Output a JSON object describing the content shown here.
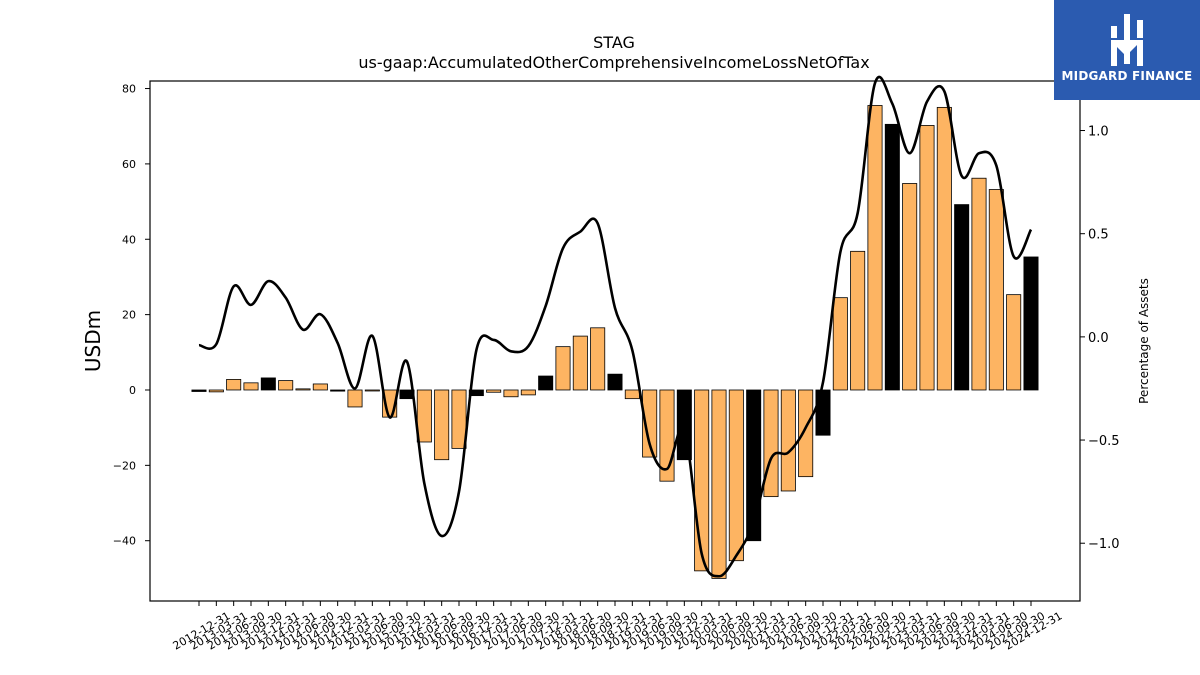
{
  "chart_data": {
    "type": "bar",
    "title": "STAG",
    "subtitle": "us-gaap:AccumulatedOtherComprehensiveIncomeLossNetOfTax",
    "ylabel": "USDm",
    "y2label": "Percentage of Assets",
    "ylim": [
      -56,
      82
    ],
    "y2lim": [
      -1.28,
      1.24
    ],
    "yticks": [
      -40,
      -20,
      0,
      20,
      40,
      60,
      80
    ],
    "y2ticks": [
      -1.0,
      -0.5,
      0.0,
      0.5,
      1.0
    ],
    "categories": [
      "2012-12-31",
      "2013-03-31",
      "2013-06-30",
      "2013-09-30",
      "2013-12-31",
      "2014-03-31",
      "2014-06-30",
      "2014-09-30",
      "2014-12-31",
      "2015-03-31",
      "2015-06-30",
      "2015-09-30",
      "2015-12-31",
      "2016-03-31",
      "2016-06-30",
      "2016-09-30",
      "2016-12-31",
      "2017-03-31",
      "2017-06-30",
      "2017-09-30",
      "2017-12-31",
      "2018-03-31",
      "2018-06-30",
      "2018-09-30",
      "2018-12-31",
      "2019-03-31",
      "2019-06-30",
      "2019-09-30",
      "2019-12-31",
      "2020-03-31",
      "2020-06-30",
      "2020-09-30",
      "2020-12-31",
      "2021-03-31",
      "2021-06-30",
      "2021-09-30",
      "2021-12-31",
      "2022-03-31",
      "2022-06-30",
      "2022-09-30",
      "2022-12-31",
      "2023-03-31",
      "2023-06-30",
      "2023-09-30",
      "2023-12-31",
      "2024-03-31",
      "2024-06-30",
      "2024-09-30",
      "2024-12-31"
    ],
    "series": [
      {
        "type": "bar",
        "axis": "left",
        "values": [
          -0.4,
          -0.5,
          2.8,
          1.9,
          3.2,
          2.5,
          0.3,
          1.6,
          -0.3,
          -4.5,
          -0.2,
          -7.2,
          -2.3,
          -13.8,
          -18.5,
          -15.5,
          -1.5,
          -0.6,
          -1.8,
          -1.3,
          3.7,
          11.5,
          14.3,
          16.5,
          4.2,
          -2.3,
          -17.8,
          -24.2,
          -18.5,
          -48.0,
          -50.0,
          -45.3,
          -40.0,
          -28.3,
          -26.8,
          -23.0,
          -12.0,
          24.5,
          36.8,
          75.5,
          70.5,
          54.8,
          70.2,
          75.0,
          49.2,
          56.2,
          53.2,
          25.3,
          35.3
        ]
      },
      {
        "type": "line",
        "axis": "right",
        "values": [
          -0.04,
          -0.035,
          0.245,
          0.155,
          0.27,
          0.19,
          0.035,
          0.11,
          -0.03,
          -0.25,
          0.005,
          -0.39,
          -0.12,
          -0.71,
          -0.965,
          -0.75,
          -0.065,
          -0.015,
          -0.07,
          -0.045,
          0.15,
          0.43,
          0.51,
          0.55,
          0.14,
          -0.065,
          -0.52,
          -0.64,
          -0.45,
          -1.05,
          -1.16,
          -1.06,
          -0.9,
          -0.59,
          -0.56,
          -0.44,
          -0.22,
          0.41,
          0.6,
          1.23,
          1.13,
          0.89,
          1.14,
          1.19,
          0.78,
          0.89,
          0.83,
          0.39,
          0.52
        ]
      }
    ],
    "bar_colors": {
      "quarter": "#fdb462",
      "year_end": "#000000"
    },
    "line_color": "#000000"
  },
  "logo": {
    "text": "MIDGARD FINANCE",
    "background": "#2b5bb0"
  }
}
